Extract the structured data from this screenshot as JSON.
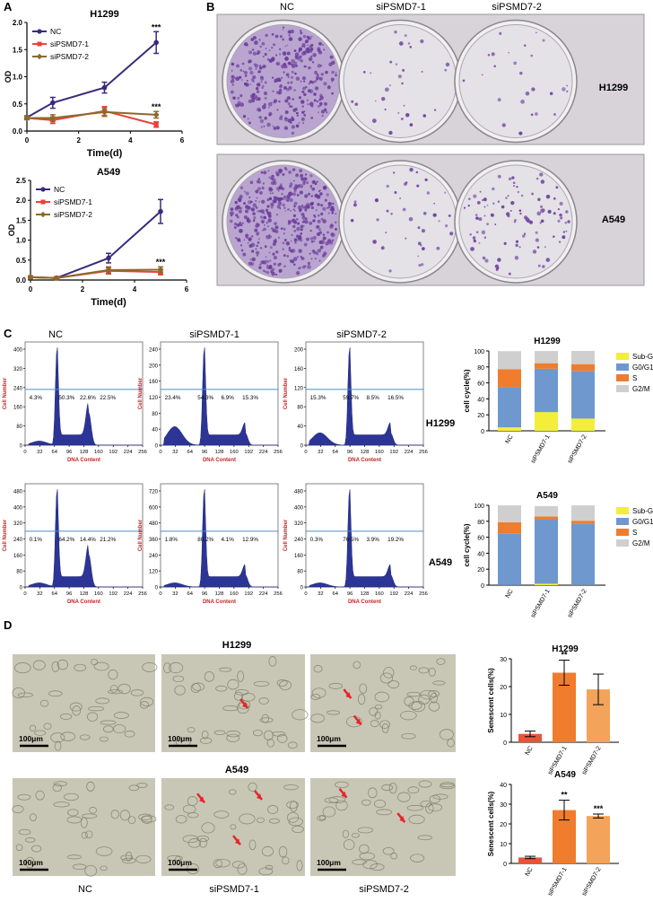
{
  "colors": {
    "nc": "#3b2a7a",
    "si1": "#e8423a",
    "si2": "#8a6a2a",
    "subg1": "#f2ee3a",
    "g0g1": "#6f98cf",
    "s": "#ef7d2d",
    "g2m": "#cfcfcf",
    "sen_nc": "#e8543a",
    "sen_si1": "#ef7d2d",
    "sen_si2": "#f3a35a",
    "histo": "#2c3596",
    "gate": "#4a8fd0",
    "axis_red": "#c0282a",
    "plate_purple": "#6a3a9a",
    "plate_bg": "#d7d3d8",
    "micro_bg": "#c8c7b6"
  },
  "panels": {
    "A": {
      "label": "A",
      "h1299": {
        "title": "H1299",
        "xlabel": "Time(d)",
        "ylabel": "OD",
        "sig": "***",
        "sig2": "***",
        "yticks": [
          "0.0",
          "0.5",
          "1.0",
          "1.5",
          "2.0"
        ],
        "xticks": [
          "0",
          "2",
          "4",
          "6"
        ],
        "legend": [
          "NC",
          "siPSMD7-1",
          "siPSMD7-2"
        ]
      },
      "a549": {
        "title": "A549",
        "xlabel": "Time(d)",
        "ylabel": "OD",
        "sig": "***",
        "yticks": [
          "0.0",
          "0.5",
          "1.0",
          "1.5",
          "2.0",
          "2.5"
        ],
        "xticks": [
          "0",
          "2",
          "4",
          "6"
        ],
        "legend": [
          "NC",
          "siPSMD7-1",
          "siPSMD7-2"
        ]
      }
    },
    "B": {
      "label": "B",
      "cols": [
        "NC",
        "siPSMD7-1",
        "siPSMD7-2"
      ],
      "rows": [
        "H1299",
        "A549"
      ]
    },
    "C": {
      "label": "C",
      "cols": [
        "NC",
        "siPSMD7-1",
        "siPSMD7-2"
      ],
      "rows": [
        "H1299",
        "A549"
      ],
      "xlabel": "DNA Content",
      "ylabel": "Cell Number",
      "xticks": [
        "0",
        "32",
        "64",
        "96",
        "128",
        "160",
        "192",
        "224",
        "256"
      ],
      "hist": [
        {
          "yticks": [
            "0",
            "80",
            "160",
            "240",
            "320",
            "400"
          ],
          "pct": [
            "4.3%",
            "50.3%",
            "22.6%",
            "22.5%"
          ]
        },
        {
          "yticks": [
            "0",
            "40",
            "80",
            "120",
            "160",
            "200",
            "240"
          ],
          "pct": [
            "23.4%",
            "54.3%",
            "6.9%",
            "15.3%"
          ]
        },
        {
          "yticks": [
            "0",
            "40",
            "80",
            "120",
            "160",
            "200"
          ],
          "pct": [
            "15.3%",
            "59.7%",
            "8.5%",
            "16.5%"
          ]
        },
        {
          "yticks": [
            "0",
            "80",
            "160",
            "240",
            "320",
            "400",
            "480"
          ],
          "pct": [
            "0.1%",
            "64.2%",
            "14.4%",
            "21.2%"
          ]
        },
        {
          "yticks": [
            "0",
            "120",
            "240",
            "360",
            "480",
            "600",
            "720"
          ],
          "pct": [
            "1.8%",
            "80.2%",
            "4.1%",
            "12.9%"
          ]
        },
        {
          "yticks": [
            "0",
            "80",
            "160",
            "240",
            "320",
            "400",
            "480"
          ],
          "pct": [
            "0.3%",
            "76.5%",
            "3.9%",
            "19.2%"
          ]
        }
      ],
      "stack": {
        "ylabel": "cell cycle(%)",
        "yticks": [
          "0",
          "20",
          "40",
          "60",
          "80",
          "100"
        ],
        "legend": [
          "Sub-G1",
          "G0/G1",
          "S",
          "G2/M"
        ],
        "categories": [
          "NC",
          "siPSMD7-1",
          "siPSMD7-2"
        ]
      }
    },
    "D": {
      "label": "D",
      "rows": [
        "H1299",
        "A549"
      ],
      "cols": [
        "NC",
        "siPSMD7-1",
        "siPSMD7-2"
      ],
      "scale": "100μm",
      "bar_ylabel": "Senescent cells(%)",
      "categories": [
        "NC",
        "siPSMD7-1",
        "siPSMD7-2"
      ],
      "h1299_yticks": [
        "0",
        "10",
        "20",
        "30"
      ],
      "a549_yticks": [
        "0",
        "10",
        "20",
        "30",
        "40"
      ]
    }
  },
  "chart_data": [
    {
      "type": "line",
      "title": "H1299",
      "xlabel": "Time(d)",
      "ylabel": "OD",
      "x": [
        0,
        1,
        3,
        5
      ],
      "ylim": [
        0,
        2.0
      ],
      "xlim": [
        0,
        6
      ],
      "series": [
        {
          "name": "NC",
          "values": [
            0.25,
            0.52,
            0.8,
            1.63
          ],
          "err": [
            0.03,
            0.1,
            0.1,
            0.2
          ]
        },
        {
          "name": "siPSMD7-1",
          "values": [
            0.24,
            0.2,
            0.37,
            0.12
          ],
          "err": [
            0.03,
            0.06,
            0.08,
            0.05
          ]
        },
        {
          "name": "siPSMD7-2",
          "values": [
            0.24,
            0.24,
            0.35,
            0.3
          ],
          "err": [
            0.03,
            0.06,
            0.08,
            0.06
          ]
        }
      ],
      "annotations": [
        "***",
        "***"
      ]
    },
    {
      "type": "line",
      "title": "A549",
      "xlabel": "Time(d)",
      "ylabel": "OD",
      "x": [
        0,
        1,
        3,
        5
      ],
      "ylim": [
        0,
        2.5
      ],
      "xlim": [
        0,
        6
      ],
      "series": [
        {
          "name": "NC",
          "values": [
            0.07,
            0.05,
            0.55,
            1.72
          ],
          "err": [
            0.02,
            0.02,
            0.12,
            0.3
          ]
        },
        {
          "name": "siPSMD7-1",
          "values": [
            0.07,
            0.05,
            0.23,
            0.2
          ],
          "err": [
            0.02,
            0.02,
            0.08,
            0.07
          ]
        },
        {
          "name": "siPSMD7-2",
          "values": [
            0.07,
            0.05,
            0.25,
            0.26
          ],
          "err": [
            0.02,
            0.02,
            0.08,
            0.07
          ]
        }
      ],
      "annotations": [
        "***"
      ]
    },
    {
      "type": "bar",
      "stacked": true,
      "title": "H1299",
      "ylabel": "cell cycle(%)",
      "categories": [
        "NC",
        "siPSMD7-1",
        "siPSMD7-2"
      ],
      "ylim": [
        0,
        100
      ],
      "series": [
        {
          "name": "Sub-G1",
          "values": [
            4.3,
            23.4,
            15.3
          ]
        },
        {
          "name": "G0/G1",
          "values": [
            50.3,
            54.3,
            59.7
          ]
        },
        {
          "name": "S",
          "values": [
            22.6,
            6.9,
            8.5
          ]
        },
        {
          "name": "G2/M",
          "values": [
            22.5,
            15.3,
            16.5
          ]
        }
      ]
    },
    {
      "type": "bar",
      "stacked": true,
      "title": "A549",
      "ylabel": "cell cycle(%)",
      "categories": [
        "NC",
        "siPSMD7-1",
        "siPSMD7-2"
      ],
      "ylim": [
        0,
        100
      ],
      "series": [
        {
          "name": "Sub-G1",
          "values": [
            0.1,
            1.8,
            0.3
          ]
        },
        {
          "name": "G0/G1",
          "values": [
            64.2,
            80.2,
            76.5
          ]
        },
        {
          "name": "S",
          "values": [
            14.4,
            4.1,
            3.9
          ]
        },
        {
          "name": "G2/M",
          "values": [
            21.2,
            12.9,
            19.2
          ]
        }
      ]
    },
    {
      "type": "bar",
      "title": "H1299",
      "ylabel": "Senescent cells(%)",
      "categories": [
        "NC",
        "siPSMD7-1",
        "siPSMD7-2"
      ],
      "ylim": [
        0,
        30
      ],
      "values": [
        3,
        25,
        19
      ],
      "err": [
        1,
        4.5,
        5.5
      ],
      "annotations": [
        "",
        "**",
        ""
      ]
    },
    {
      "type": "bar",
      "title": "A549",
      "ylabel": "Senescent cells(%)",
      "categories": [
        "NC",
        "siPSMD7-1",
        "siPSMD7-2"
      ],
      "ylim": [
        0,
        40
      ],
      "values": [
        3,
        27,
        24
      ],
      "err": [
        0.6,
        5,
        1
      ],
      "annotations": [
        "",
        "**",
        "***"
      ]
    }
  ]
}
